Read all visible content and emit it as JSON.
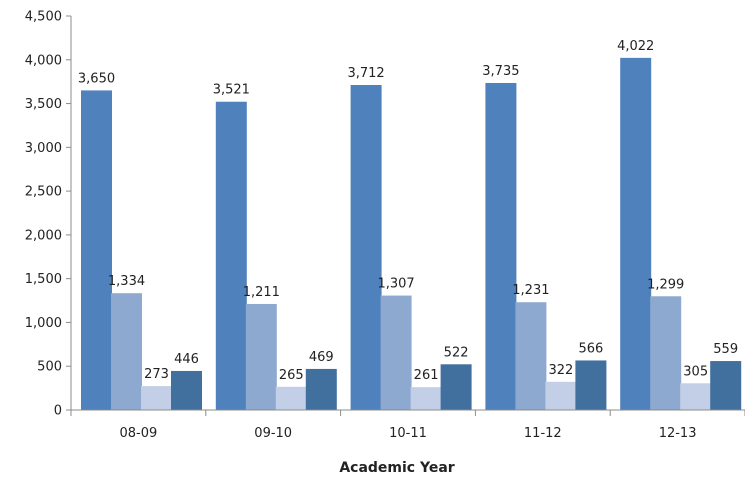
{
  "chart_data": {
    "type": "bar",
    "xlabel": "Academic Year",
    "ylabel": "",
    "ylim": [
      0,
      4500
    ],
    "yticks": [
      0,
      500,
      1000,
      1500,
      2000,
      2500,
      3000,
      3500,
      4000,
      4500
    ],
    "ytick_labels": [
      "0",
      "500",
      "1,000",
      "1,500",
      "2,000",
      "2,500",
      "3,000",
      "3,500",
      "4,000",
      "4,500"
    ],
    "grid": false,
    "legend": "none",
    "categories": [
      "08-09",
      "09-10",
      "10-11",
      "11-12",
      "12-13"
    ],
    "series": [
      {
        "color": "#4F81BD",
        "values": [
          3650,
          3521,
          3712,
          3735,
          4022
        ],
        "labels": [
          "3,650",
          "3,521",
          "3,712",
          "3,735",
          "4,022"
        ]
      },
      {
        "color": "#8EA9D0",
        "values": [
          1334,
          1211,
          1307,
          1231,
          1299
        ],
        "labels": [
          "1,334",
          "1,211",
          "1,307",
          "1,231",
          "1,299"
        ]
      },
      {
        "color": "#C3CFE6",
        "values": [
          273,
          265,
          261,
          322,
          305
        ],
        "labels": [
          "273",
          "265",
          "261",
          "322",
          "305"
        ]
      },
      {
        "color": "#41709E",
        "values": [
          446,
          469,
          522,
          566,
          559
        ],
        "labels": [
          "446",
          "469",
          "522",
          "566",
          "559"
        ]
      }
    ]
  }
}
